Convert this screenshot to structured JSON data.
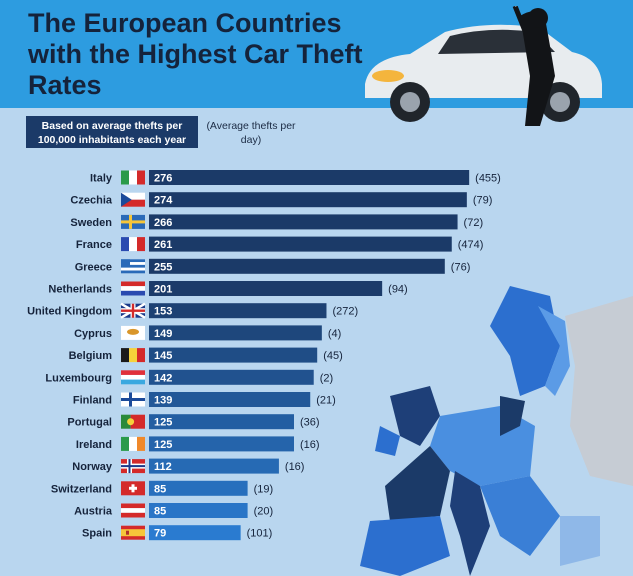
{
  "header": {
    "title": "The European Countries with the Highest Car Theft Rates",
    "subtitle": "Based on average thefts per 100,000 inhabitants each year",
    "note": "(Average thefts per day)"
  },
  "colors": {
    "header_bg": "#2d9ce0",
    "page_bg": "#b9d6ef",
    "bar_dark": "#1b3a68",
    "bar_light": "#2a7bd0"
  },
  "chart_data": {
    "type": "bar",
    "orientation": "horizontal",
    "title": "The European Countries with the Highest Car Theft Rates",
    "xlabel": "Based on average thefts per 100,000 inhabitants each year",
    "categories": [
      "Italy",
      "Czechia",
      "Sweden",
      "France",
      "Greece",
      "Netherlands",
      "United Kingdom",
      "Cyprus",
      "Belgium",
      "Luxembourg",
      "Finland",
      "Portugal",
      "Ireland",
      "Norway",
      "Switzerland",
      "Austria",
      "Spain"
    ],
    "series": [
      {
        "values": [
          276,
          274,
          266,
          261,
          255,
          201,
          153,
          149,
          145,
          142,
          139,
          125,
          125,
          112,
          85,
          85,
          79
        ]
      },
      {
        "name": "(Average thefts per day)",
        "values": [
          455,
          79,
          72,
          474,
          76,
          94,
          272,
          4,
          45,
          2,
          21,
          36,
          16,
          16,
          19,
          20,
          101
        ]
      }
    ]
  }
}
